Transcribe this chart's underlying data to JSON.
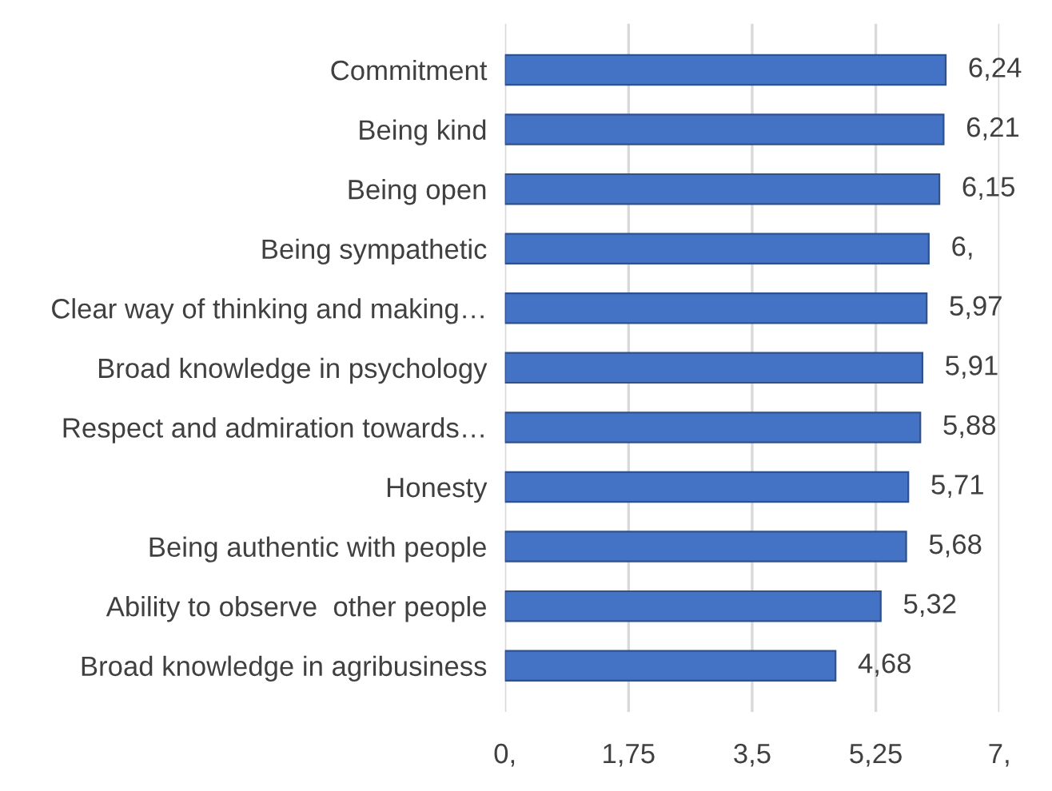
{
  "chart_data": {
    "type": "bar",
    "orientation": "horizontal",
    "categories": [
      "Commitment",
      "Being kind",
      "Being open",
      "Being sympathetic",
      "Clear way of thinking and making…",
      "Broad knowledge in psychology",
      "Respect and admiration towards…",
      "Honesty",
      "Being authentic with people",
      "Ability to observe  other people",
      "Broad knowledge in agribusiness"
    ],
    "values": [
      6.24,
      6.21,
      6.15,
      6.0,
      5.97,
      5.91,
      5.88,
      5.71,
      5.68,
      5.32,
      4.68
    ],
    "value_labels": [
      "6,24",
      "6,21",
      "6,15",
      "6,",
      "5,97",
      "5,91",
      "5,88",
      "5,71",
      "5,68",
      "5,32",
      "4,68"
    ],
    "color": "#4472c4",
    "xlim": [
      0,
      7
    ],
    "xticks": [
      {
        "value": 0,
        "label": "0,"
      },
      {
        "value": 1.75,
        "label": "1,75"
      },
      {
        "value": 3.5,
        "label": "3,5"
      },
      {
        "value": 5.25,
        "label": "5,25"
      },
      {
        "value": 7,
        "label": "7,"
      }
    ],
    "grid": "x",
    "legend": false
  }
}
